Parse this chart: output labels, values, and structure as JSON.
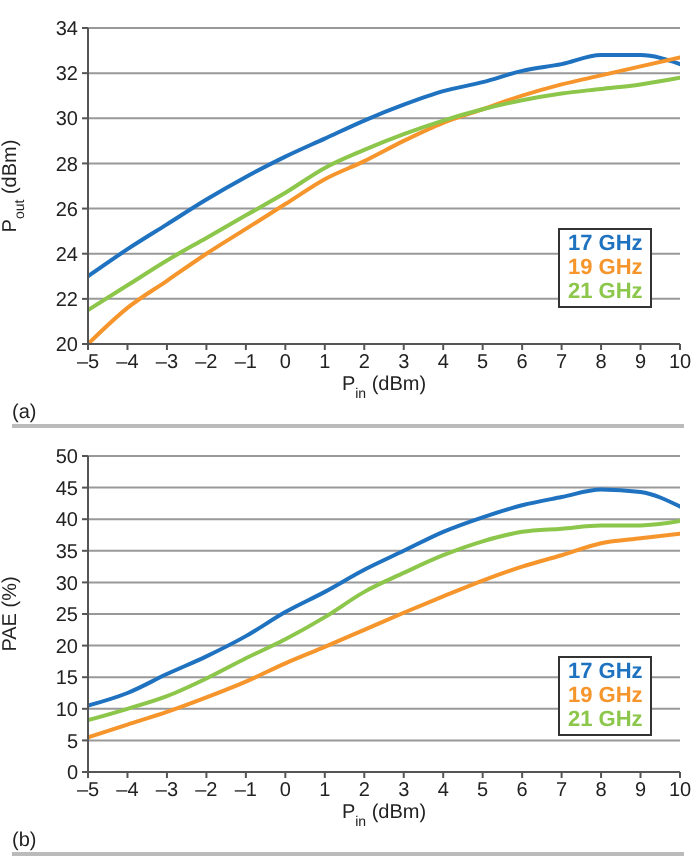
{
  "chart_data": [
    {
      "type": "line",
      "xlabel": "P$_{in}$ (dBm)",
      "ylabel": "P$_{out}$ (dBm)",
      "annotations": [
        "(a)"
      ],
      "x": [
        -5,
        -4,
        -3,
        -2,
        -1,
        0,
        1,
        2,
        3,
        4,
        5,
        6,
        7,
        8,
        9,
        10
      ],
      "series": [
        {
          "name": "17 GHz",
          "color": "#1f72bf",
          "values": [
            23.0,
            24.2,
            25.3,
            26.4,
            27.4,
            28.3,
            29.1,
            29.9,
            30.6,
            31.2,
            31.6,
            32.1,
            32.4,
            32.8,
            32.8,
            32.4
          ]
        },
        {
          "name": "19 GHz",
          "color": "#f5952b",
          "values": [
            20.0,
            21.6,
            22.8,
            24.0,
            25.1,
            26.2,
            27.3,
            28.1,
            29.0,
            29.8,
            30.4,
            31.0,
            31.5,
            31.9,
            32.3,
            32.7
          ]
        },
        {
          "name": "21 GHz",
          "color": "#8cc64a",
          "values": [
            21.5,
            22.6,
            23.7,
            24.7,
            25.7,
            26.7,
            27.8,
            28.6,
            29.3,
            29.9,
            30.4,
            30.8,
            31.1,
            31.3,
            31.5,
            31.8
          ]
        }
      ],
      "xlim": [
        -5,
        10
      ],
      "xticks": [
        {
          "value": -5,
          "label": "–5"
        },
        {
          "value": -4,
          "label": "–4"
        },
        {
          "value": -3,
          "label": "–3"
        },
        {
          "value": -2,
          "label": "–2"
        },
        {
          "value": -1,
          "label": "–1"
        },
        0,
        1,
        2,
        3,
        4,
        5,
        6,
        7,
        8,
        9,
        10
      ],
      "ylim": [
        20,
        34
      ],
      "yticks": [
        20,
        22,
        24,
        26,
        28,
        30,
        32,
        34
      ],
      "grid": "y",
      "legend": "bottom right",
      "marker": "none",
      "line_style": "solid"
    },
    {
      "type": "line",
      "xlabel": "P$_{in}$ (dBm)",
      "ylabel": "PAE (%)",
      "annotations": [
        "(b)"
      ],
      "x": [
        -5,
        -4,
        -3,
        -2,
        -1,
        0,
        1,
        2,
        3,
        4,
        5,
        6,
        7,
        8,
        9,
        10
      ],
      "series": [
        {
          "name": "17 GHz",
          "color": "#1f72bf",
          "values": [
            10.5,
            12.5,
            15.5,
            18.3,
            21.5,
            25.3,
            28.5,
            32,
            35,
            38,
            40.3,
            42.2,
            43.5,
            44.7,
            44.3,
            42
          ]
        },
        {
          "name": "19 GHz",
          "color": "#f5952b",
          "values": [
            5.5,
            7.5,
            9.5,
            11.8,
            14.3,
            17.2,
            19.8,
            22.5,
            25.2,
            27.8,
            30.3,
            32.5,
            34.3,
            36.2,
            37,
            37.7
          ]
        },
        {
          "name": "21 GHz",
          "color": "#8cc64a",
          "values": [
            8.2,
            10,
            12,
            14.8,
            18,
            21,
            24.5,
            28.5,
            31.5,
            34.3,
            36.5,
            38,
            38.5,
            39,
            39,
            39.7
          ]
        }
      ],
      "xlim": [
        -5,
        10
      ],
      "xticks": [
        {
          "value": -5,
          "label": "–5"
        },
        {
          "value": -4,
          "label": "–4"
        },
        {
          "value": -3,
          "label": "–3"
        },
        {
          "value": -2,
          "label": "–2"
        },
        {
          "value": -1,
          "label": "–1"
        },
        0,
        1,
        2,
        3,
        4,
        5,
        6,
        7,
        8,
        9,
        10
      ],
      "ylim": [
        0,
        50
      ],
      "yticks": [
        0,
        5,
        10,
        15,
        20,
        25,
        30,
        35,
        40,
        45,
        50
      ],
      "grid": "y",
      "legend": "bottom right",
      "marker": "none",
      "line_style": "solid"
    }
  ]
}
